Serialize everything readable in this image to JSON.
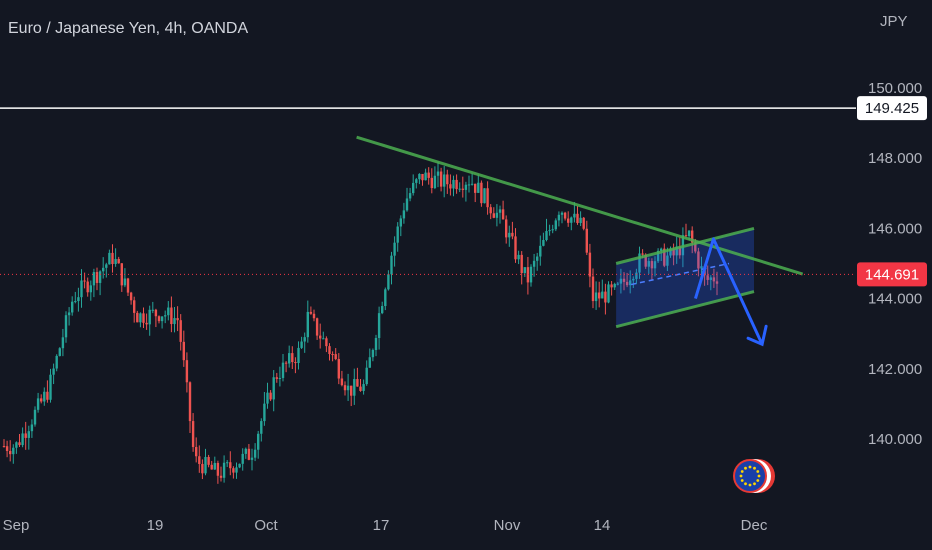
{
  "header": {
    "title": "Euro / Japanese Yen, 4h, OANDA",
    "currency": "JPY"
  },
  "chart_data": {
    "type": "candlestick",
    "title": "Euro / Japanese Yen, 4h, OANDA",
    "symbol": "EURJPY",
    "timeframe": "4h",
    "source": "OANDA",
    "y_unit": "JPY",
    "ylim": [
      138.0,
      151.2
    ],
    "y_ticks": [
      "150.000",
      "148.000",
      "146.000",
      "144.000",
      "142.000",
      "140.000"
    ],
    "x_ticks": [
      "Sep",
      "19",
      "Oct",
      "17",
      "Nov",
      "14",
      "Dec"
    ],
    "price_levels": [
      {
        "label": "149.425",
        "value": 149.425,
        "style": "horizontal-line",
        "color": "#ffffff"
      },
      {
        "label": "144.691",
        "value": 144.691,
        "style": "current-price",
        "color": "#f23645"
      }
    ],
    "price_path": [
      {
        "date": "Sep 1",
        "close": 139.8
      },
      {
        "date": "Sep 5",
        "close": 141.4
      },
      {
        "date": "Sep 8",
        "close": 144.0
      },
      {
        "date": "Sep 13",
        "close": 145.2
      },
      {
        "date": "Sep 16",
        "close": 143.5
      },
      {
        "date": "Sep 19",
        "close": 143.6
      },
      {
        "date": "Sep 21",
        "close": 143.4
      },
      {
        "date": "Sep 22",
        "close": 141.5
      },
      {
        "date": "Sep 23",
        "close": 139.4
      },
      {
        "date": "Sep 26",
        "close": 139.0
      },
      {
        "date": "Sep 30",
        "close": 139.6
      },
      {
        "date": "Oct 3",
        "close": 141.8
      },
      {
        "date": "Oct 6",
        "close": 142.5
      },
      {
        "date": "Oct 7",
        "close": 143.5
      },
      {
        "date": "Oct 10",
        "close": 142.4
      },
      {
        "date": "Oct 12",
        "close": 141.4
      },
      {
        "date": "Oct 14",
        "close": 141.5
      },
      {
        "date": "Oct 17",
        "close": 145.0
      },
      {
        "date": "Oct 19",
        "close": 146.8
      },
      {
        "date": "Oct 21",
        "close": 147.5
      },
      {
        "date": "Oct 24",
        "close": 147.3
      },
      {
        "date": "Oct 27",
        "close": 147.4
      },
      {
        "date": "Oct 31",
        "close": 146.2
      },
      {
        "date": "Nov 3",
        "close": 144.5
      },
      {
        "date": "Nov 7",
        "close": 146.6
      },
      {
        "date": "Nov 10",
        "close": 146.0
      },
      {
        "date": "Nov 11",
        "close": 144.0
      },
      {
        "date": "Nov 14",
        "close": 144.2
      },
      {
        "date": "Nov 17",
        "close": 145.1
      },
      {
        "date": "Nov 21",
        "close": 145.2
      },
      {
        "date": "Nov 23",
        "close": 145.8
      },
      {
        "date": "Nov 25",
        "close": 144.5
      },
      {
        "date": "Nov 27",
        "close": 144.7
      }
    ],
    "drawings": [
      {
        "name": "descending-trendline",
        "color": "#4caf50",
        "from": {
          "date": "Oct 13",
          "price": 148.6
        },
        "to": {
          "date": "Dec 7",
          "price": 144.7
        }
      },
      {
        "name": "channel-upper",
        "color": "#4caf50",
        "from": {
          "date": "Nov 14",
          "price": 145.0
        },
        "to": {
          "date": "Dec 1",
          "price": 146.0
        }
      },
      {
        "name": "channel-lower",
        "color": "#4caf50",
        "from": {
          "date": "Nov 14",
          "price": 143.2
        },
        "to": {
          "date": "Dec 1",
          "price": 144.2
        }
      },
      {
        "name": "projection-arrow",
        "color": "#2962ff",
        "from": {
          "date": "Nov 26",
          "price": 145.7
        },
        "to": {
          "date": "Dec 2",
          "price": 142.7
        }
      }
    ],
    "grid": false,
    "legend": "none"
  },
  "badges": {
    "flag": "EU"
  }
}
